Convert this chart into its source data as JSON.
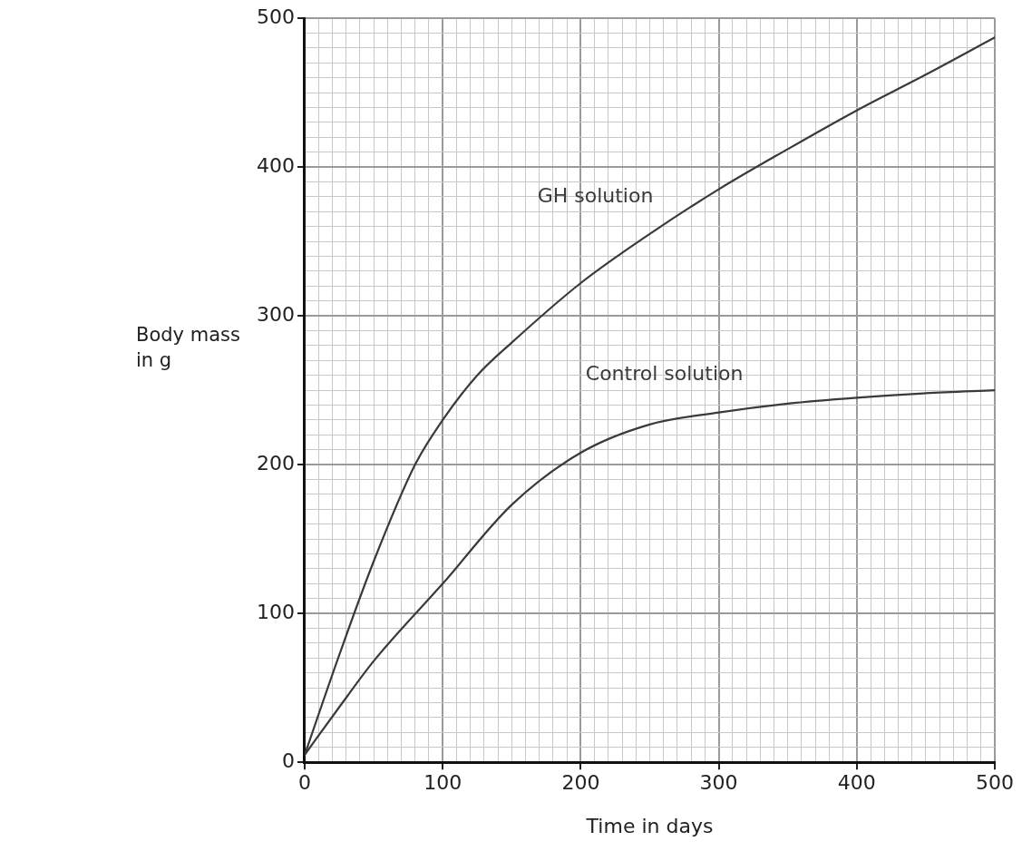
{
  "chart_data": {
    "type": "line",
    "xlabel": "Time in days",
    "ylabel": "Body mass in g",
    "x": [
      0,
      25,
      50,
      80,
      100,
      125,
      150,
      200,
      250,
      300,
      350,
      400,
      450,
      500
    ],
    "series": [
      {
        "name": "GH solution",
        "color": "#3a3a3a",
        "values": [
          5,
          72,
          135,
          200,
          230,
          260,
          282,
          322,
          355,
          385,
          412,
          438,
          462,
          487
        ]
      },
      {
        "name": "Control solution",
        "color": "#3a3a3a",
        "x": [
          0,
          25,
          50,
          100,
          150,
          200,
          250,
          300,
          350,
          400,
          450,
          500
        ],
        "values": [
          5,
          37,
          68,
          120,
          173,
          208,
          227,
          235,
          241,
          245,
          248,
          250
        ]
      }
    ],
    "xlim": [
      0,
      500
    ],
    "ylim": [
      0,
      500
    ],
    "xticks": [
      0,
      {
        "value": 10,
        "label": null
      },
      {
        "value": 20,
        "label": null
      },
      {
        "value": 30,
        "label": null
      },
      {
        "value": 40,
        "label": null
      },
      {
        "value": 50,
        "label": null
      },
      {
        "value": 60,
        "label": null
      },
      {
        "value": 70,
        "label": null
      },
      {
        "value": 80,
        "label": null
      },
      {
        "value": 90,
        "label": null
      },
      100,
      {
        "value": 110,
        "label": null
      },
      {
        "value": 120,
        "label": null
      },
      {
        "value": 130,
        "label": null
      },
      {
        "value": 140,
        "label": null
      },
      {
        "value": 150,
        "label": null
      },
      {
        "value": 160,
        "label": null
      },
      {
        "value": 170,
        "label": null
      },
      {
        "value": 180,
        "label": null
      },
      {
        "value": 190,
        "label": null
      },
      200,
      {
        "value": 210,
        "label": null
      },
      {
        "value": 220,
        "label": null
      },
      {
        "value": 230,
        "label": null
      },
      {
        "value": 240,
        "label": null
      },
      {
        "value": 250,
        "label": null
      },
      {
        "value": 260,
        "label": null
      },
      {
        "value": 270,
        "label": null
      },
      {
        "value": 280,
        "label": null
      },
      {
        "value": 290,
        "label": null
      },
      300,
      {
        "value": 310,
        "label": null
      },
      {
        "value": 320,
        "label": null
      },
      {
        "value": 330,
        "label": null
      },
      {
        "value": 340,
        "label": null
      },
      {
        "value": 350,
        "label": null
      },
      {
        "value": 360,
        "label": null
      },
      {
        "value": 370,
        "label": null
      },
      {
        "value": 380,
        "label": null
      },
      {
        "value": 390,
        "label": null
      },
      400,
      {
        "value": 410,
        "label": null
      },
      {
        "value": 420,
        "label": null
      },
      {
        "value": 430,
        "label": null
      },
      {
        "value": 440,
        "label": null
      },
      {
        "value": 450,
        "label": null
      },
      {
        "value": 460,
        "label": null
      },
      {
        "value": 470,
        "label": null
      },
      {
        "value": 480,
        "label": null
      },
      {
        "value": 490,
        "label": null
      },
      500
    ],
    "yticks": [
      0,
      {
        "value": 10,
        "label": null
      },
      {
        "value": 20,
        "label": null
      },
      {
        "value": 30,
        "label": null
      },
      {
        "value": 40,
        "label": null
      },
      {
        "value": 50,
        "label": null
      },
      {
        "value": 60,
        "label": null
      },
      {
        "value": 70,
        "label": null
      },
      {
        "value": 80,
        "label": null
      },
      {
        "value": 90,
        "label": null
      },
      100,
      {
        "value": 110,
        "label": null
      },
      {
        "value": 120,
        "label": null
      },
      {
        "value": 130,
        "label": null
      },
      {
        "value": 140,
        "label": null
      },
      {
        "value": 150,
        "label": null
      },
      {
        "value": 160,
        "label": null
      },
      {
        "value": 170,
        "label": null
      },
      {
        "value": 180,
        "label": null
      },
      {
        "value": 190,
        "label": null
      },
      200,
      {
        "value": 210,
        "label": null
      },
      {
        "value": 220,
        "label": null
      },
      {
        "value": 230,
        "label": null
      },
      {
        "value": 240,
        "label": null
      },
      {
        "value": 250,
        "label": null
      },
      {
        "value": 260,
        "label": null
      },
      {
        "value": 270,
        "label": null
      },
      {
        "value": 280,
        "label": null
      },
      {
        "value": 290,
        "label": null
      },
      300,
      {
        "value": 310,
        "label": null
      },
      {
        "value": 320,
        "label": null
      },
      {
        "value": 330,
        "label": null
      },
      {
        "value": 340,
        "label": null
      },
      {
        "value": 350,
        "label": null
      },
      {
        "value": 360,
        "label": null
      },
      {
        "value": 370,
        "label": null
      },
      {
        "value": 380,
        "label": null
      },
      {
        "value": 390,
        "label": null
      },
      400,
      {
        "value": 410,
        "label": null
      },
      {
        "value": 420,
        "label": null
      },
      {
        "value": 430,
        "label": null
      },
      {
        "value": 440,
        "label": null
      },
      {
        "value": 450,
        "label": null
      },
      {
        "value": 460,
        "label": null
      },
      {
        "value": 470,
        "label": null
      },
      {
        "value": 480,
        "label": null
      },
      {
        "value": 490,
        "label": null
      },
      500
    ],
    "grid": true,
    "legend": false,
    "marker": "none",
    "line_style": "solid"
  }
}
